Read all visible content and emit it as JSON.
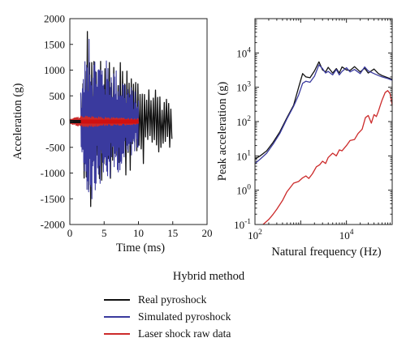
{
  "caption": "Hybrid method",
  "colors": {
    "real": "#111111",
    "simulated": "#3a3a9e",
    "laser": "#cc2a2a",
    "laser_spine": "#d01010",
    "axis": "#222222"
  },
  "legend": [
    {
      "label": "Real pyroshock",
      "color": "#111111"
    },
    {
      "label": "Simulated pyroshock",
      "color": "#3a3a9e"
    },
    {
      "label": "Laser shock raw data",
      "color": "#cc2a2a"
    }
  ],
  "chart_data": [
    {
      "type": "line",
      "title": "",
      "xlabel": "Time (ms)",
      "ylabel": "Acceleration (g)",
      "xlim": [
        0,
        20
      ],
      "ylim": [
        -2000,
        2000
      ],
      "xticks": [
        0,
        5,
        10,
        15,
        20
      ],
      "yticks": [
        -2000,
        -1500,
        -1000,
        -500,
        0,
        500,
        1000,
        1500,
        2000
      ],
      "grid": false,
      "series": [
        {
          "name": "Real pyroshock",
          "t_start": 1.6,
          "t_end": 15.0,
          "peak_max": 1750,
          "peak_min": -1650,
          "envelope_t": [
            1.6,
            2.5,
            4.0,
            6.0,
            8.0,
            10.0,
            12.0,
            13.5,
            15.0
          ],
          "envelope_amp": [
            700,
            1450,
            1300,
            1200,
            1150,
            900,
            750,
            600,
            480
          ]
        },
        {
          "name": "Simulated pyroshock",
          "t_start": 1.6,
          "t_end": 10.0,
          "peak_max": 1600,
          "peak_min": -1500,
          "envelope_t": [
            1.6,
            2.5,
            4.0,
            6.0,
            8.0,
            10.0
          ],
          "envelope_amp": [
            600,
            1450,
            1300,
            1150,
            850,
            500
          ]
        },
        {
          "name": "Laser shock raw data",
          "t_start": 0.0,
          "t_end": 10.0,
          "envelope_t": [
            0.0,
            1.6,
            4.0,
            10.0
          ],
          "envelope_amp": [
            40,
            110,
            90,
            55
          ]
        }
      ]
    },
    {
      "type": "line",
      "title": "",
      "xlabel": "Natural frequency (Hz)",
      "ylabel": "Peak acceleration (g)",
      "xscale": "log",
      "yscale": "log",
      "xlim": [
        100,
        100000
      ],
      "ylim": [
        0.1,
        100000
      ],
      "xticks": [
        100,
        10000
      ],
      "xtick_labels": [
        "10^2",
        "10^4"
      ],
      "yticks": [
        0.1,
        1,
        10,
        100,
        1000,
        10000
      ],
      "ytick_labels": [
        "10^-1",
        "10^0",
        "10^1",
        "10^2",
        "10^3",
        "10^4"
      ],
      "grid": false,
      "series": [
        {
          "name": "Real pyroshock",
          "x": [
            100,
            130,
            180,
            250,
            350,
            500,
            700,
            900,
            1100,
            1300,
            1600,
            2000,
            2500,
            3000,
            3500,
            4000,
            5000,
            6000,
            7000,
            8000,
            10000,
            12000,
            15000,
            20000,
            25000,
            30000,
            40000,
            50000,
            60000,
            80000,
            100000
          ],
          "y": [
            8,
            10,
            14,
            25,
            50,
            130,
            300,
            1000,
            2500,
            2000,
            1900,
            3000,
            5500,
            3200,
            2800,
            3800,
            2600,
            3500,
            2600,
            3900,
            3200,
            3100,
            4000,
            2800,
            3600,
            2600,
            3400,
            2500,
            2200,
            1900,
            1700
          ]
        },
        {
          "name": "Simulated pyroshock",
          "x": [
            100,
            130,
            180,
            250,
            350,
            500,
            700,
            900,
            1100,
            1300,
            1600,
            2000,
            2500,
            3000,
            3500,
            4000,
            5000,
            6000,
            7000,
            8000,
            10000,
            12000,
            15000,
            20000,
            25000,
            30000,
            40000,
            50000,
            60000,
            80000,
            100000
          ],
          "y": [
            6,
            8,
            12,
            22,
            45,
            120,
            280,
            600,
            1300,
            1500,
            1400,
            2100,
            4500,
            3500,
            2600,
            2900,
            2300,
            3300,
            2300,
            2900,
            3700,
            2800,
            3300,
            2500,
            3900,
            3000,
            2500,
            2200,
            2000,
            1800,
            1600
          ]
        },
        {
          "name": "Laser shock raw data",
          "x": [
            150,
            200,
            250,
            300,
            400,
            500,
            700,
            900,
            1100,
            1300,
            1500,
            1800,
            2200,
            2600,
            3000,
            3500,
            4000,
            5000,
            6000,
            7000,
            8000,
            10000,
            12000,
            15000,
            18000,
            22000,
            26000,
            30000,
            35000,
            40000,
            45000,
            50000,
            55000,
            60000,
            70000,
            80000,
            90000,
            100000
          ],
          "y": [
            0.1,
            0.14,
            0.2,
            0.28,
            0.5,
            0.9,
            1.6,
            1.8,
            2.3,
            2.6,
            2.2,
            3.0,
            4.8,
            5.5,
            7.0,
            6.0,
            9.0,
            12.0,
            10.0,
            15.0,
            14.0,
            20.0,
            28.0,
            30.0,
            45.0,
            60.0,
            130.0,
            150.0,
            90.0,
            160.0,
            140.0,
            200.0,
            300.0,
            420.0,
            700.0,
            800.0,
            650.0,
            300.0
          ]
        }
      ]
    }
  ]
}
